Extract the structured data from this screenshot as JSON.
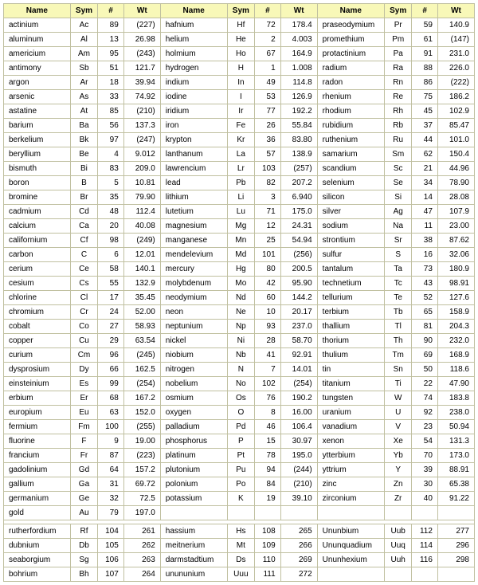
{
  "headers": {
    "name": "Name",
    "sym": "Sym",
    "num": "#",
    "wt": "Wt"
  },
  "rows": [
    [
      [
        "actinium",
        "Ac",
        "89",
        "(227)"
      ],
      [
        "hafnium",
        "Hf",
        "72",
        "178.4"
      ],
      [
        "praseodymium",
        "Pr",
        "59",
        "140.9"
      ]
    ],
    [
      [
        "aluminum",
        "Al",
        "13",
        "26.98"
      ],
      [
        "helium",
        "He",
        "2",
        "4.003"
      ],
      [
        "promethium",
        "Pm",
        "61",
        "(147)"
      ]
    ],
    [
      [
        "americium",
        "Am",
        "95",
        "(243)"
      ],
      [
        "holmium",
        "Ho",
        "67",
        "164.9"
      ],
      [
        "protactinium",
        "Pa",
        "91",
        "231.0"
      ]
    ],
    [
      [
        "antimony",
        "Sb",
        "51",
        "121.7"
      ],
      [
        "hydrogen",
        "H",
        "1",
        "1.008"
      ],
      [
        "radium",
        "Ra",
        "88",
        "226.0"
      ]
    ],
    [
      [
        "argon",
        "Ar",
        "18",
        "39.94"
      ],
      [
        "indium",
        "In",
        "49",
        "114.8"
      ],
      [
        "radon",
        "Rn",
        "86",
        "(222)"
      ]
    ],
    [
      [
        "arsenic",
        "As",
        "33",
        "74.92"
      ],
      [
        "iodine",
        "I",
        "53",
        "126.9"
      ],
      [
        "rhenium",
        "Re",
        "75",
        "186.2"
      ]
    ],
    [
      [
        "astatine",
        "At",
        "85",
        "(210)"
      ],
      [
        "iridium",
        "Ir",
        "77",
        "192.2"
      ],
      [
        "rhodium",
        "Rh",
        "45",
        "102.9"
      ]
    ],
    [
      [
        "barium",
        "Ba",
        "56",
        "137.3"
      ],
      [
        "iron",
        "Fe",
        "26",
        "55.84"
      ],
      [
        "rubidium",
        "Rb",
        "37",
        "85.47"
      ]
    ],
    [
      [
        "berkelium",
        "Bk",
        "97",
        "(247)"
      ],
      [
        "krypton",
        "Kr",
        "36",
        "83.80"
      ],
      [
        "ruthenium",
        "Ru",
        "44",
        "101.0"
      ]
    ],
    [
      [
        "beryllium",
        "Be",
        "4",
        "9.012"
      ],
      [
        "lanthanum",
        "La",
        "57",
        "138.9"
      ],
      [
        "samarium",
        "Sm",
        "62",
        "150.4"
      ]
    ],
    [
      [
        "bismuth",
        "Bi",
        "83",
        "209.0"
      ],
      [
        "lawrencium",
        "Lr",
        "103",
        "(257)"
      ],
      [
        "scandium",
        "Sc",
        "21",
        "44.96"
      ]
    ],
    [
      [
        "boron",
        "B",
        "5",
        "10.81"
      ],
      [
        "lead",
        "Pb",
        "82",
        "207.2"
      ],
      [
        "selenium",
        "Se",
        "34",
        "78.90"
      ]
    ],
    [
      [
        "bromine",
        "Br",
        "35",
        "79.90"
      ],
      [
        "lithium",
        "Li",
        "3",
        "6.940"
      ],
      [
        "silicon",
        "Si",
        "14",
        "28.08"
      ]
    ],
    [
      [
        "cadmium",
        "Cd",
        "48",
        "112.4"
      ],
      [
        "lutetium",
        "Lu",
        "71",
        "175.0"
      ],
      [
        "silver",
        "Ag",
        "47",
        "107.9"
      ]
    ],
    [
      [
        "calcium",
        "Ca",
        "20",
        "40.08"
      ],
      [
        "magnesium",
        "Mg",
        "12",
        "24.31"
      ],
      [
        "sodium",
        "Na",
        "11",
        "23.00"
      ]
    ],
    [
      [
        "californium",
        "Cf",
        "98",
        "(249)"
      ],
      [
        "manganese",
        "Mn",
        "25",
        "54.94"
      ],
      [
        "strontium",
        "Sr",
        "38",
        "87.62"
      ]
    ],
    [
      [
        "carbon",
        "C",
        "6",
        "12.01"
      ],
      [
        "mendelevium",
        "Md",
        "101",
        "(256)"
      ],
      [
        "sulfur",
        "S",
        "16",
        "32.06"
      ]
    ],
    [
      [
        "cerium",
        "Ce",
        "58",
        "140.1"
      ],
      [
        "mercury",
        "Hg",
        "80",
        "200.5"
      ],
      [
        "tantalum",
        "Ta",
        "73",
        "180.9"
      ]
    ],
    [
      [
        "cesium",
        "Cs",
        "55",
        "132.9"
      ],
      [
        "molybdenum",
        "Mo",
        "42",
        "95.90"
      ],
      [
        "technetium",
        "Tc",
        "43",
        "98.91"
      ]
    ],
    [
      [
        "chlorine",
        "Cl",
        "17",
        "35.45"
      ],
      [
        "neodymium",
        "Nd",
        "60",
        "144.2"
      ],
      [
        "tellurium",
        "Te",
        "52",
        "127.6"
      ]
    ],
    [
      [
        "chromium",
        "Cr",
        "24",
        "52.00"
      ],
      [
        "neon",
        "Ne",
        "10",
        "20.17"
      ],
      [
        "terbium",
        "Tb",
        "65",
        "158.9"
      ]
    ],
    [
      [
        "cobalt",
        "Co",
        "27",
        "58.93"
      ],
      [
        "neptunium",
        "Np",
        "93",
        "237.0"
      ],
      [
        "thallium",
        "Tl",
        "81",
        "204.3"
      ]
    ],
    [
      [
        "copper",
        "Cu",
        "29",
        "63.54"
      ],
      [
        "nickel",
        "Ni",
        "28",
        "58.70"
      ],
      [
        "thorium",
        "Th",
        "90",
        "232.0"
      ]
    ],
    [
      [
        "curium",
        "Cm",
        "96",
        "(245)"
      ],
      [
        "niobium",
        "Nb",
        "41",
        "92.91"
      ],
      [
        "thulium",
        "Tm",
        "69",
        "168.9"
      ]
    ],
    [
      [
        "dysprosium",
        "Dy",
        "66",
        "162.5"
      ],
      [
        "nitrogen",
        "N",
        "7",
        "14.01"
      ],
      [
        "tin",
        "Sn",
        "50",
        "118.6"
      ]
    ],
    [
      [
        "einsteinium",
        "Es",
        "99",
        "(254)"
      ],
      [
        "nobelium",
        "No",
        "102",
        "(254)"
      ],
      [
        "titanium",
        "Ti",
        "22",
        "47.90"
      ]
    ],
    [
      [
        "erbium",
        "Er",
        "68",
        "167.2"
      ],
      [
        "osmium",
        "Os",
        "76",
        "190.2"
      ],
      [
        "tungsten",
        "W",
        "74",
        "183.8"
      ]
    ],
    [
      [
        "europium",
        "Eu",
        "63",
        "152.0"
      ],
      [
        "oxygen",
        "O",
        "8",
        "16.00"
      ],
      [
        "uranium",
        "U",
        "92",
        "238.0"
      ]
    ],
    [
      [
        "fermium",
        "Fm",
        "100",
        "(255)"
      ],
      [
        "palladium",
        "Pd",
        "46",
        "106.4"
      ],
      [
        "vanadium",
        "V",
        "23",
        "50.94"
      ]
    ],
    [
      [
        "fluorine",
        "F",
        "9",
        "19.00"
      ],
      [
        "phosphorus",
        "P",
        "15",
        "30.97"
      ],
      [
        "xenon",
        "Xe",
        "54",
        "131.3"
      ]
    ],
    [
      [
        "francium",
        "Fr",
        "87",
        "(223)"
      ],
      [
        "platinum",
        "Pt",
        "78",
        "195.0"
      ],
      [
        "ytterbium",
        "Yb",
        "70",
        "173.0"
      ]
    ],
    [
      [
        "gadolinium",
        "Gd",
        "64",
        "157.2"
      ],
      [
        "plutonium",
        "Pu",
        "94",
        "(244)"
      ],
      [
        "yttrium",
        "Y",
        "39",
        "88.91"
      ]
    ],
    [
      [
        "gallium",
        "Ga",
        "31",
        "69.72"
      ],
      [
        "polonium",
        "Po",
        "84",
        "(210)"
      ],
      [
        "zinc",
        "Zn",
        "30",
        "65.38"
      ]
    ],
    [
      [
        "germanium",
        "Ge",
        "32",
        "72.5"
      ],
      [
        "potassium",
        "K",
        "19",
        "39.10"
      ],
      [
        "zirconium",
        "Zr",
        "40",
        "91.22"
      ]
    ],
    [
      [
        "gold",
        "Au",
        "79",
        "197.0"
      ],
      [
        "",
        "",
        "",
        ""
      ],
      [
        "",
        "",
        "",
        ""
      ]
    ]
  ],
  "rows2": [
    [
      [
        "rutherfordium",
        "Rf",
        "104",
        "261"
      ],
      [
        "hassium",
        "Hs",
        "108",
        "265"
      ],
      [
        "Ununbium",
        "Uub",
        "112",
        "277"
      ]
    ],
    [
      [
        "dubnium",
        "Db",
        "105",
        "262"
      ],
      [
        "meitnerium",
        "Mt",
        "109",
        "266"
      ],
      [
        "Ununquadium",
        "Uuq",
        "114",
        "296"
      ]
    ],
    [
      [
        "seaborgium",
        "Sg",
        "106",
        "263"
      ],
      [
        "darmstadtium",
        "Ds",
        "110",
        "269"
      ],
      [
        "Ununhexium",
        "Uuh",
        "116",
        "298"
      ]
    ],
    [
      [
        "bohrium",
        "Bh",
        "107",
        "264"
      ],
      [
        "unununium",
        "Uuu",
        "111",
        "272"
      ],
      [
        "",
        "",
        "",
        ""
      ]
    ]
  ],
  "style": {
    "header_bg": "#f8f8b8",
    "border": "#c0c0a0",
    "font": "Verdana",
    "fontsize": 10,
    "cols": [
      "Name",
      "Sym",
      "#",
      "Wt"
    ],
    "groups": 3
  }
}
